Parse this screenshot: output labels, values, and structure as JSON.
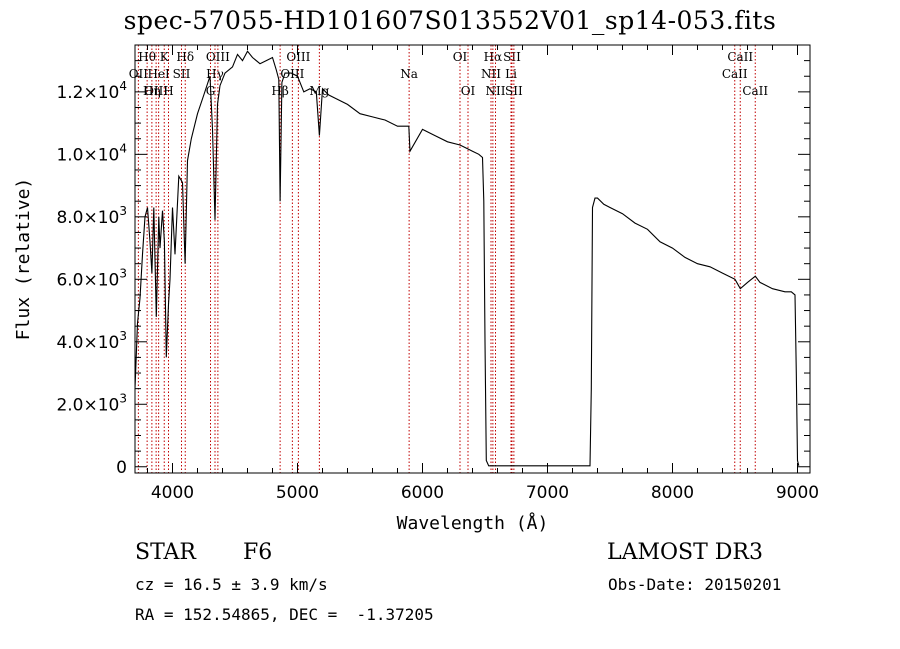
{
  "chart_data": {
    "type": "line",
    "title": "spec-57055-HD101607S013552V01_sp14-053.fits",
    "xlabel": "Wavelength (Å)",
    "ylabel": "Flux (relative)",
    "xlim": [
      3700,
      9100
    ],
    "ylim": [
      -200,
      13500
    ],
    "grid": false,
    "x_ticks": [
      {
        "value": 4000,
        "label": "4000"
      },
      {
        "value": 5000,
        "label": "5000"
      },
      {
        "value": 6000,
        "label": "6000"
      },
      {
        "value": 7000,
        "label": "7000"
      },
      {
        "value": 8000,
        "label": "8000"
      },
      {
        "value": 9000,
        "label": "9000"
      }
    ],
    "y_ticks": [
      {
        "value": 0,
        "mant": "0",
        "exp": ""
      },
      {
        "value": 2000,
        "mant": "2.0×10",
        "exp": "3"
      },
      {
        "value": 4000,
        "mant": "4.0×10",
        "exp": "3"
      },
      {
        "value": 6000,
        "mant": "6.0×10",
        "exp": "3"
      },
      {
        "value": 8000,
        "mant": "8.0×10",
        "exp": "3"
      },
      {
        "value": 10000,
        "mant": "1.0×10",
        "exp": "4"
      },
      {
        "value": 12000,
        "mant": "1.2×10",
        "exp": "4"
      }
    ],
    "series": [
      {
        "name": "flux",
        "color": "#000000",
        "x": [
          3700,
          3720,
          3740,
          3760,
          3780,
          3800,
          3820,
          3835,
          3850,
          3870,
          3890,
          3900,
          3920,
          3935,
          3950,
          3968,
          3980,
          4000,
          4020,
          4050,
          4080,
          4101,
          4120,
          4150,
          4200,
          4250,
          4300,
          4320,
          4340,
          4360,
          4380,
          4420,
          4480,
          4520,
          4560,
          4600,
          4640,
          4700,
          4750,
          4800,
          4830,
          4850,
          4861,
          4875,
          4900,
          4950,
          5000,
          5050,
          5100,
          5150,
          5175,
          5200,
          5250,
          5300,
          5400,
          5500,
          5600,
          5700,
          5800,
          5890,
          5900,
          6000,
          6100,
          6200,
          6300,
          6350,
          6400,
          6450,
          6480,
          6490,
          6500,
          6510,
          6530,
          6563,
          6600,
          6700,
          6800,
          6900,
          7000,
          7100,
          7150,
          7200,
          7250,
          7280,
          7320,
          7340,
          7350,
          7360,
          7380,
          7400,
          7450,
          7500,
          7600,
          7700,
          7800,
          7900,
          8000,
          8100,
          8200,
          8300,
          8400,
          8500,
          8542,
          8600,
          8662,
          8700,
          8800,
          8900,
          8950,
          8980,
          8990,
          9000,
          9010
        ],
        "y": [
          2500,
          4600,
          5400,
          6800,
          8000,
          8300,
          7200,
          6200,
          8300,
          4800,
          8000,
          7000,
          8200,
          7200,
          3500,
          5200,
          6000,
          8300,
          6800,
          9300,
          9100,
          6500,
          9800,
          10500,
          11300,
          11900,
          12500,
          10800,
          7900,
          11600,
          12200,
          12600,
          12800,
          13200,
          13000,
          13300,
          13100,
          12900,
          13000,
          13100,
          12700,
          12400,
          8500,
          12300,
          12600,
          12600,
          12500,
          12000,
          12100,
          12000,
          10600,
          12100,
          11900,
          11800,
          11600,
          11300,
          11200,
          11100,
          10900,
          10900,
          10100,
          10800,
          10600,
          10400,
          10300,
          10200,
          10100,
          10000,
          9900,
          8500,
          4000,
          200,
          30,
          30,
          30,
          30,
          30,
          30,
          30,
          30,
          30,
          30,
          30,
          30,
          30,
          30,
          2500,
          8300,
          8600,
          8600,
          8400,
          8300,
          8100,
          7800,
          7600,
          7200,
          7000,
          6700,
          6500,
          6400,
          6200,
          6000,
          5700,
          5900,
          6100,
          5900,
          5700,
          5600,
          5600,
          5500,
          3000,
          200,
          30
        ]
      }
    ],
    "line_markers": [
      {
        "name": "Hθ",
        "wavelength": 3797,
        "row": 0
      },
      {
        "name": "OII",
        "wavelength": 3727,
        "row": 1
      },
      {
        "name": "OIII",
        "wavelength": 3869,
        "row": 2
      },
      {
        "name": "K",
        "wavelength": 3934,
        "row": 0
      },
      {
        "name": "HeI",
        "wavelength": 3889,
        "row": 1
      },
      {
        "name": "Hη",
        "wavelength": 3835,
        "row": 2
      },
      {
        "name": "SII",
        "wavelength": 4072,
        "row": 1
      },
      {
        "name": "H",
        "wavelength": 3968,
        "row": 2
      },
      {
        "name": "Hδ",
        "wavelength": 4102,
        "row": 0
      },
      {
        "name": "OIII",
        "wavelength": 4363,
        "row": 0
      },
      {
        "name": "Hγ",
        "wavelength": 4340,
        "row": 1
      },
      {
        "name": "G",
        "wavelength": 4304,
        "row": 2
      },
      {
        "name": "OIII",
        "wavelength": 5007,
        "row": 0
      },
      {
        "name": "OIII",
        "wavelength": 4959,
        "row": 1
      },
      {
        "name": "Hβ",
        "wavelength": 4861,
        "row": 2
      },
      {
        "name": "Mg",
        "wavelength": 5175,
        "row": 2
      },
      {
        "name": "Na",
        "wavelength": 5893,
        "row": 1
      },
      {
        "name": "OI",
        "wavelength": 6300,
        "row": 0
      },
      {
        "name": "OI",
        "wavelength": 6364,
        "row": 2
      },
      {
        "name": "Hα",
        "wavelength": 6563,
        "row": 0
      },
      {
        "name": "SII",
        "wavelength": 6716,
        "row": 0
      },
      {
        "name": "NII",
        "wavelength": 6548,
        "row": 1
      },
      {
        "name": "Li",
        "wavelength": 6708,
        "row": 1
      },
      {
        "name": "NII",
        "wavelength": 6584,
        "row": 2
      },
      {
        "name": "SII",
        "wavelength": 6731,
        "row": 2
      },
      {
        "name": "CaII",
        "wavelength": 8542,
        "row": 0
      },
      {
        "name": "CaII",
        "wavelength": 8498,
        "row": 1
      },
      {
        "name": "CaII",
        "wavelength": 8662,
        "row": 2
      }
    ],
    "marker_color": "#c00000"
  },
  "info": {
    "object_class": "STAR",
    "subclass": "F6",
    "survey": "LAMOST DR3",
    "cz": "cz = 16.5 ± 3.9 km/s",
    "obs_date": "Obs-Date: 20150201",
    "coords": "RA = 152.54865, DEC =  -1.37205"
  }
}
